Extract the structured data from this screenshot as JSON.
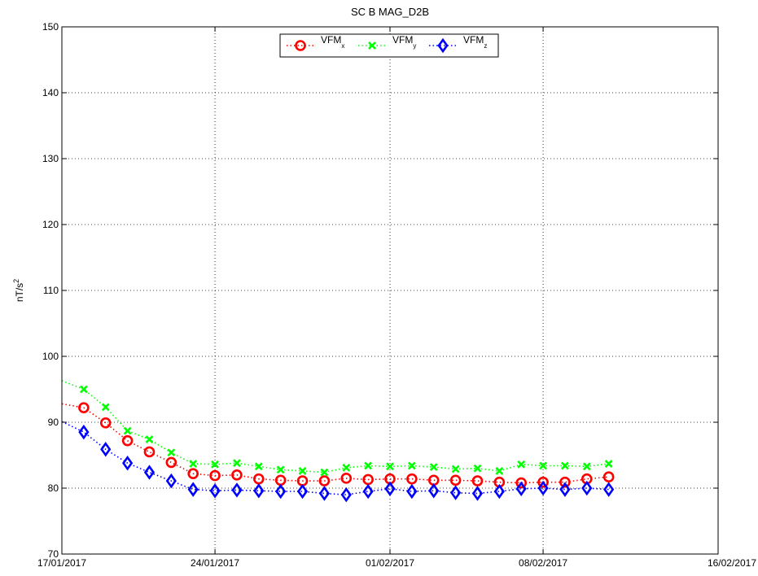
{
  "chart_data": {
    "type": "line",
    "title": "SC B MAG_D2B",
    "ylabel": {
      "base": "nT/s",
      "sup": "2"
    },
    "xlabel": "",
    "ylim": [
      70,
      150
    ],
    "yticks": [
      70,
      80,
      90,
      100,
      110,
      120,
      130,
      140,
      150
    ],
    "xlim": [
      "2017-01-17",
      "2017-02-16"
    ],
    "xticks": [
      "2017-01-17",
      "2017-01-24",
      "2017-02-01",
      "2017-02-08",
      "2017-02-16"
    ],
    "xtick_labels": [
      "17/01/2017",
      "24/01/2017",
      "01/02/2017",
      "08/02/2017",
      "16/02/2017"
    ],
    "grid": true,
    "legend_position": "top-center",
    "x": [
      "2017-01-18",
      "2017-01-19",
      "2017-01-20",
      "2017-01-21",
      "2017-01-22",
      "2017-01-23",
      "2017-01-24",
      "2017-01-25",
      "2017-01-26",
      "2017-01-27",
      "2017-01-28",
      "2017-01-29",
      "2017-01-30",
      "2017-01-31",
      "2017-02-01",
      "2017-02-02",
      "2017-02-03",
      "2017-02-04",
      "2017-02-05",
      "2017-02-06",
      "2017-02-07",
      "2017-02-08",
      "2017-02-09",
      "2017-02-10",
      "2017-02-11"
    ],
    "series": [
      {
        "name": "VFM",
        "sub": "x",
        "color": "#ff0000",
        "marker": "circle",
        "start": {
          "x": "2017-01-17",
          "y": 92.8
        },
        "values": [
          92.2,
          89.9,
          87.2,
          85.5,
          83.9,
          82.2,
          81.9,
          82.0,
          81.4,
          81.2,
          81.1,
          81.1,
          81.5,
          81.3,
          81.4,
          81.4,
          81.2,
          81.2,
          81.1,
          80.9,
          80.8,
          80.9,
          80.9,
          81.4,
          81.7
        ]
      },
      {
        "name": "VFM",
        "sub": "y",
        "color": "#00ff00",
        "marker": "x",
        "start": {
          "x": "2017-01-17",
          "y": 96.3
        },
        "values": [
          95.0,
          92.3,
          88.7,
          87.4,
          85.4,
          83.7,
          83.6,
          83.8,
          83.3,
          82.8,
          82.6,
          82.4,
          83.1,
          83.4,
          83.3,
          83.4,
          83.2,
          82.9,
          83.0,
          82.6,
          83.6,
          83.4,
          83.4,
          83.3,
          83.7
        ]
      },
      {
        "name": "VFM",
        "sub": "z",
        "color": "#0000ff",
        "marker": "diamond",
        "start": {
          "x": "2017-01-17",
          "y": 90.1
        },
        "values": [
          88.5,
          85.9,
          83.8,
          82.4,
          81.1,
          79.8,
          79.6,
          79.7,
          79.6,
          79.5,
          79.5,
          79.2,
          79.0,
          79.5,
          79.9,
          79.5,
          79.6,
          79.3,
          79.2,
          79.5,
          79.9,
          80.0,
          79.8,
          80.0,
          79.8
        ]
      }
    ]
  }
}
